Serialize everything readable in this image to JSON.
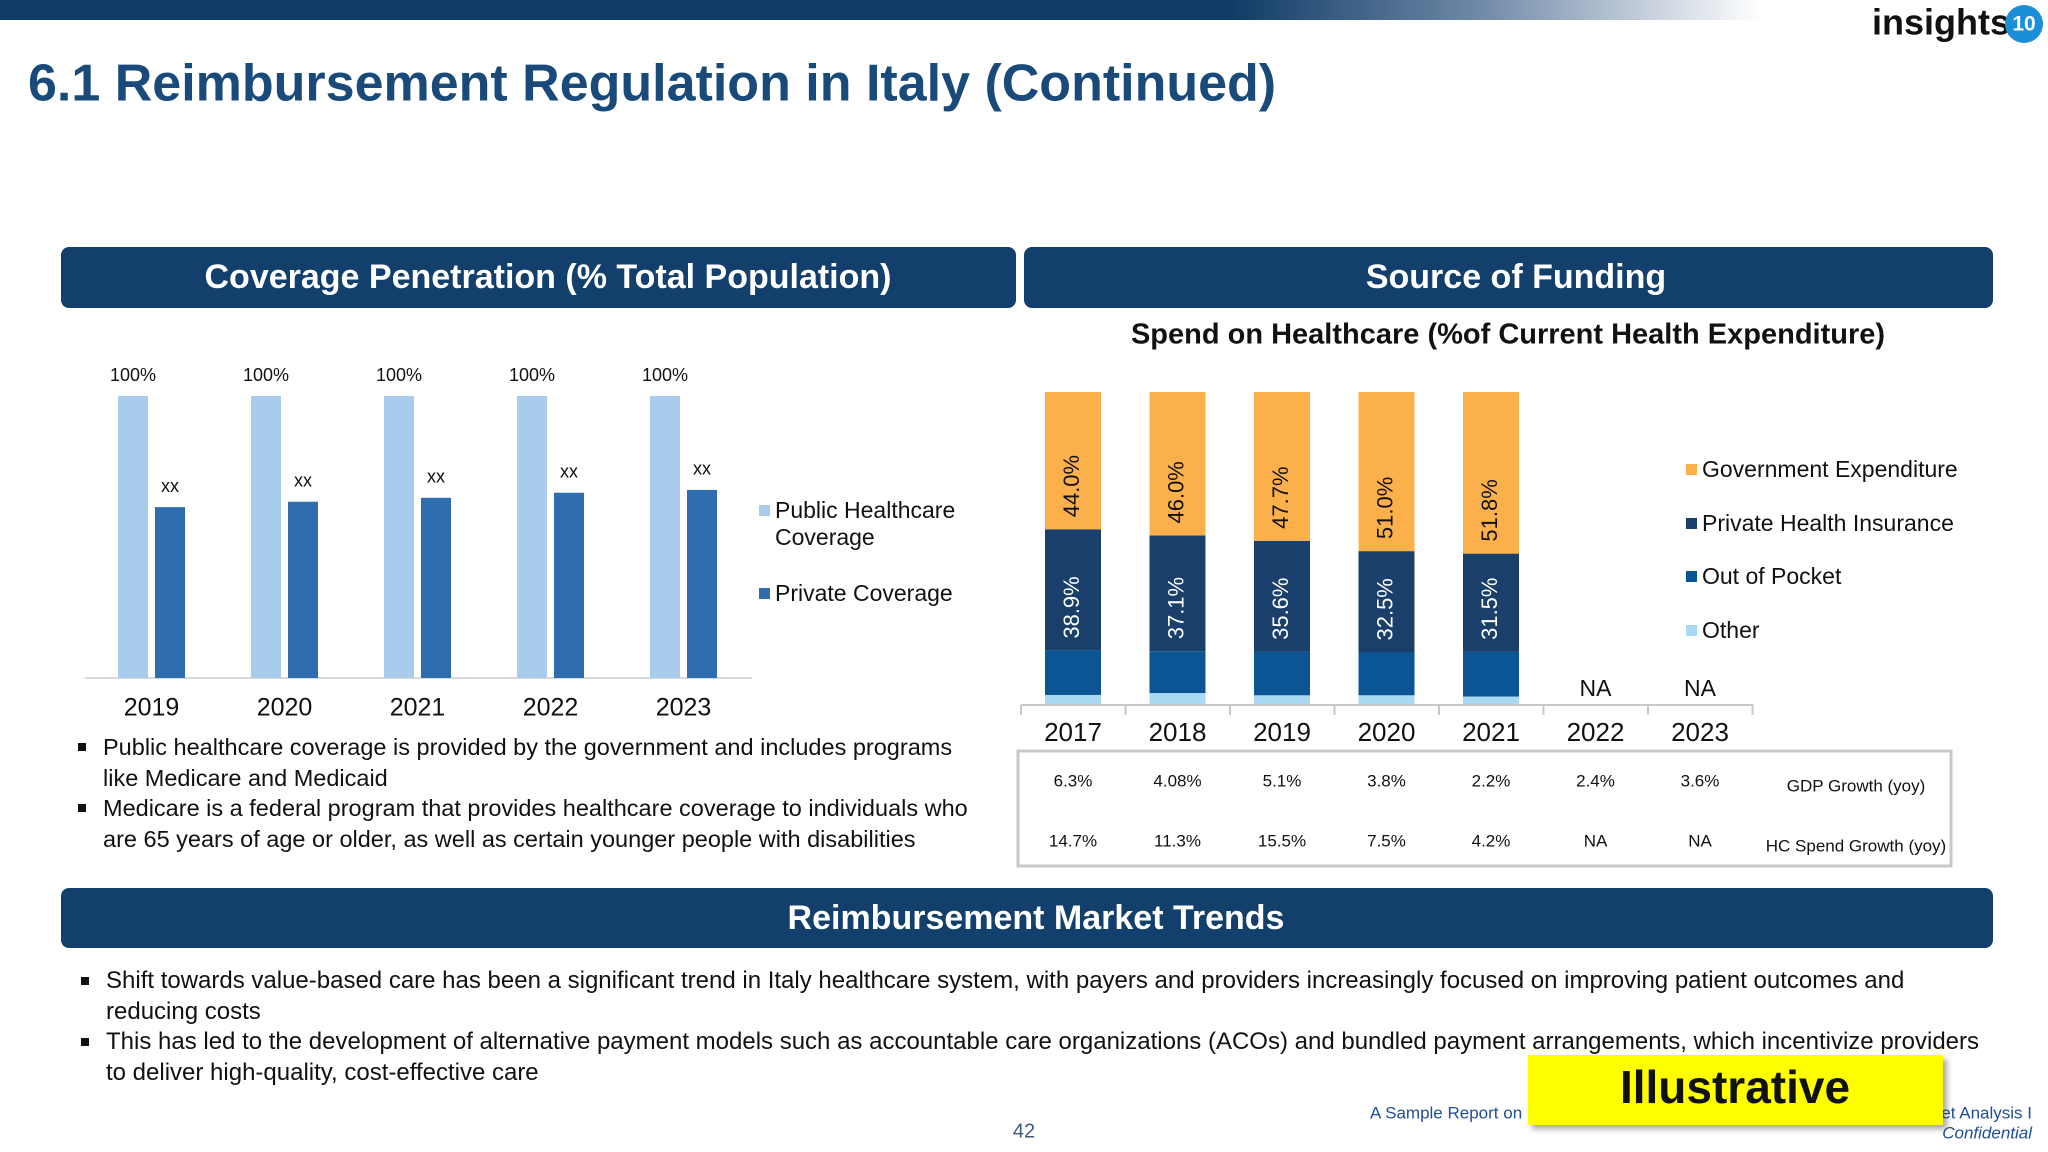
{
  "header": {
    "title": "6.1 Reimbursement Regulation in Italy (Continued)",
    "logo": "insights",
    "logo_badge": "10"
  },
  "sections": {
    "coverage": "Coverage Penetration (% Total Population)",
    "funding": "Source of Funding",
    "trends": "Reimbursement Market Trends"
  },
  "chart_data": [
    {
      "type": "bar",
      "categories": [
        "2019",
        "2020",
        "2021",
        "2022",
        "2023"
      ],
      "series": [
        {
          "name": "Public Healthcare Coverage",
          "color": "#a9cbec",
          "values": [
            100,
            100,
            100,
            100,
            100
          ],
          "value_labels": [
            "100%",
            "100%",
            "100%",
            "100%",
            "100%"
          ]
        },
        {
          "name": "Private Coverage",
          "color": "#2f6eae",
          "values": [
            60.6,
            62.5,
            63.9,
            65.7,
            66.7
          ],
          "value_labels": [
            "xx",
            "xx",
            "xx",
            "xx",
            "xx"
          ]
        }
      ],
      "ylim": [
        0,
        100
      ]
    },
    {
      "type": "stacked_bar",
      "title": "Spend on Healthcare (%of Current Health Expenditure)",
      "categories": [
        "2017",
        "2018",
        "2019",
        "2020",
        "2021",
        "2022",
        "2023"
      ],
      "series": [
        {
          "name": "Other",
          "color": "#a8d8f2",
          "values": [
            2.9,
            3.5,
            2.8,
            2.8,
            2.4,
            null,
            null
          ]
        },
        {
          "name": "Out of Pocket",
          "color": "#0c5595",
          "values": [
            14.2,
            13.4,
            13.9,
            13.7,
            14.3,
            null,
            null
          ]
        },
        {
          "name": "Private Health Insurance",
          "color": "#1a3f6b",
          "values": [
            38.9,
            37.1,
            35.6,
            32.5,
            31.5,
            null,
            null
          ],
          "value_labels": [
            "38.9%",
            "37.1%",
            "35.6%",
            "32.5%",
            "31.5%",
            null,
            null
          ]
        },
        {
          "name": "Government Expenditure",
          "color": "#fbb04b",
          "values": [
            44.0,
            46.0,
            47.7,
            51.0,
            51.8,
            null,
            null
          ],
          "value_labels": [
            "44.0%",
            "46.0%",
            "47.7%",
            "51.0%",
            "51.8%",
            "NA",
            "NA"
          ]
        }
      ],
      "ylim": [
        0,
        100
      ]
    }
  ],
  "funding_table": {
    "rows": [
      {
        "label": "GDP Growth (yoy)",
        "cells": [
          "6.3%",
          "4.08%",
          "5.1%",
          "3.8%",
          "2.2%",
          "2.4%",
          "3.6%"
        ]
      },
      {
        "label": "HC Spend Growth (yoy)",
        "cells": [
          "14.7%",
          "11.3%",
          "15.5%",
          "7.5%",
          "4.2%",
          "NA",
          "NA"
        ]
      }
    ]
  },
  "coverage_notes": [
    "Public healthcare coverage is provided by the government and includes programs like Medicare and Medicaid",
    "Medicare is a federal program that provides healthcare coverage to individuals who are 65 years of age or older, as well as certain younger people with disabilities"
  ],
  "trends": [
    "Shift towards value-based care has been a significant trend in Italy healthcare system, with payers and providers increasingly focused on improving patient outcomes and reducing costs",
    "This has led to the development of alternative payment models such as accountable care organizations (ACOs) and bundled payment arrangements, which incentivize providers to deliver high-quality, cost-effective care"
  ],
  "footer": {
    "page": "42",
    "source": "A Sample Report on",
    "source_end": "et Analysis I",
    "confidential": "Confidential"
  },
  "stamp": "Illustrative"
}
